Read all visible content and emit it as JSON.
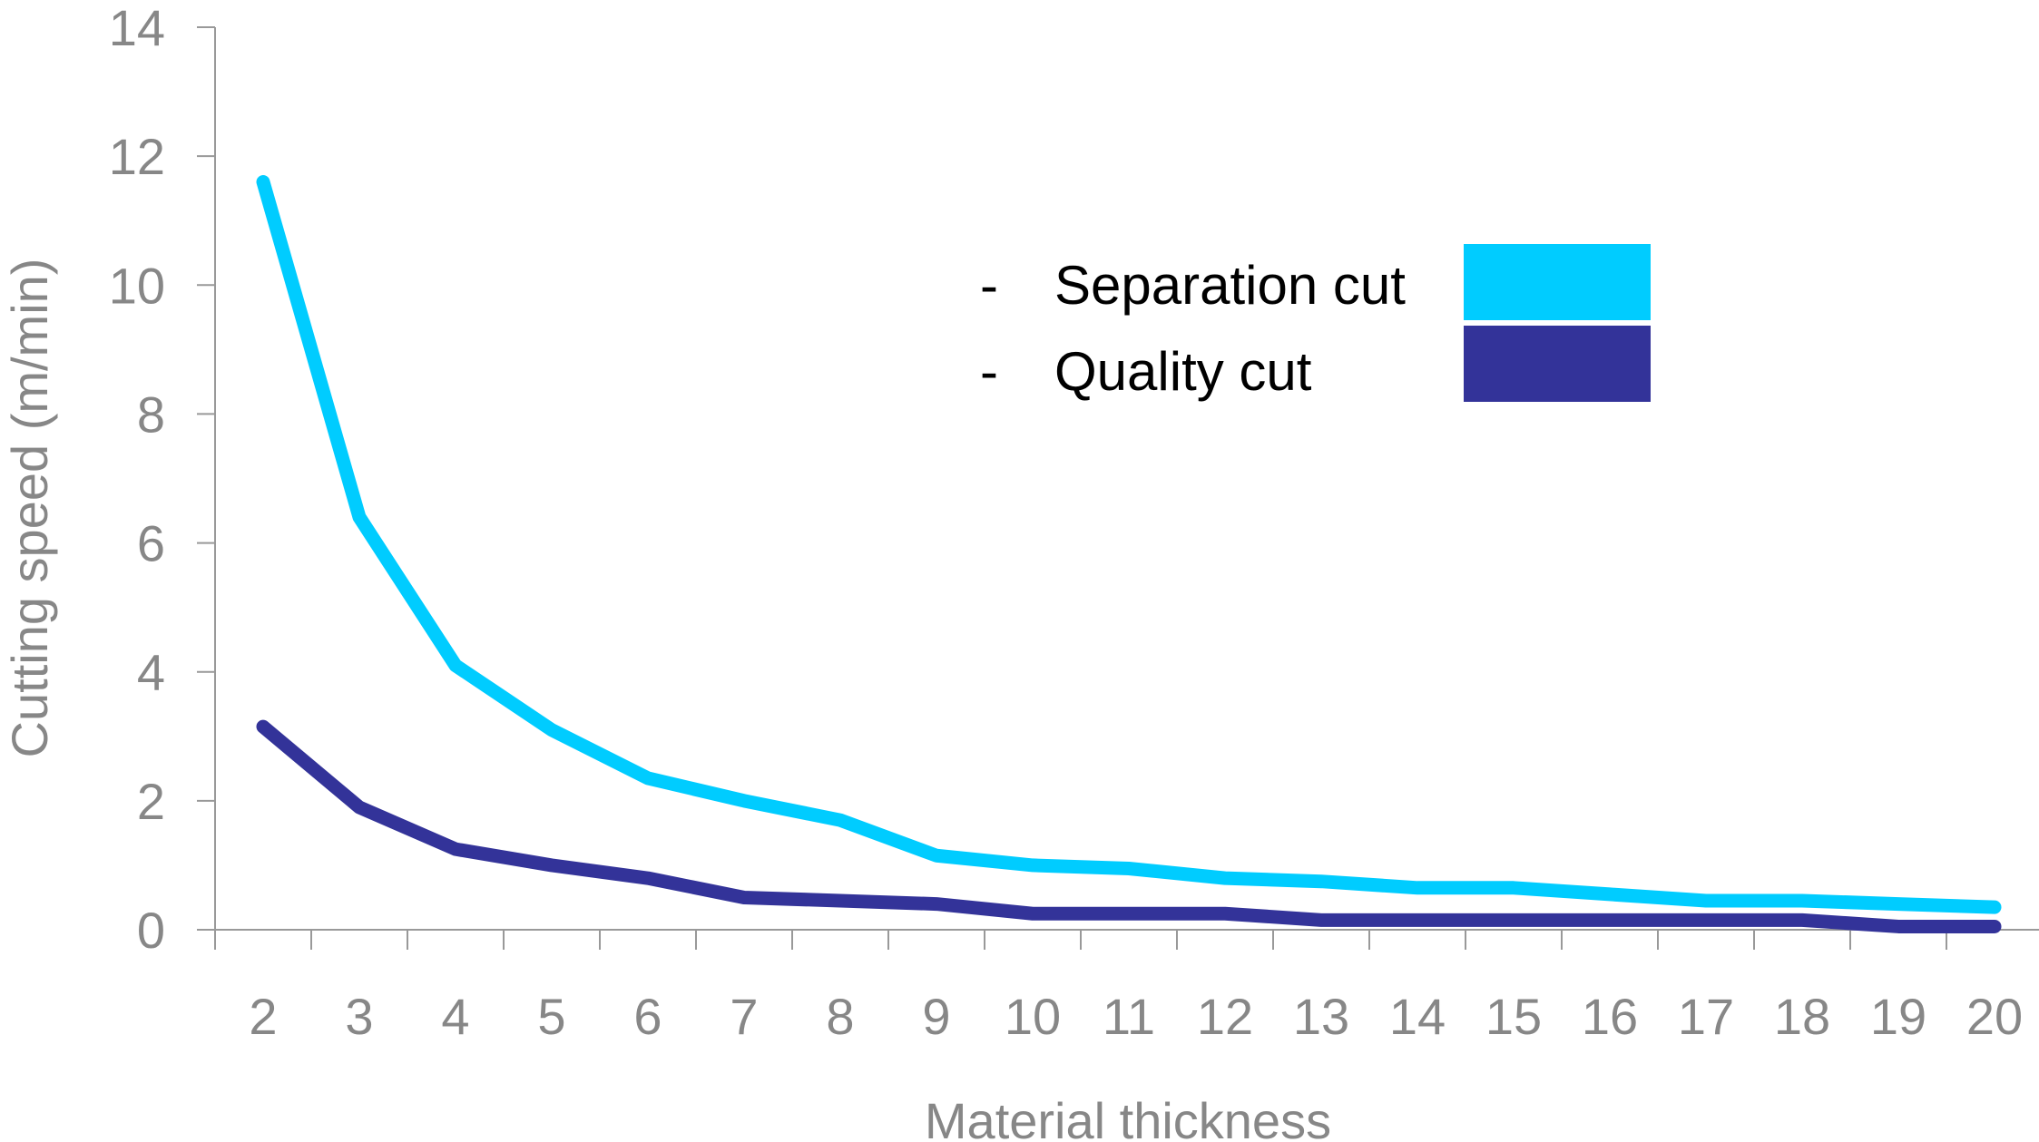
{
  "chart_data": {
    "type": "line",
    "categories": [
      "2",
      "3",
      "4",
      "5",
      "6",
      "7",
      "8",
      "9",
      "10",
      "11",
      "12",
      "13",
      "14",
      "15",
      "16",
      "17",
      "18",
      "19",
      "20"
    ],
    "series": [
      {
        "name": "Separation cut",
        "color": "#00CCFF",
        "values": [
          11.6,
          6.4,
          4.1,
          3.1,
          2.35,
          2.0,
          1.7,
          1.15,
          1.0,
          0.95,
          0.8,
          0.75,
          0.65,
          0.65,
          0.55,
          0.45,
          0.45,
          0.4,
          0.35
        ]
      },
      {
        "name": "Quality cut",
        "color": "#333399",
        "values": [
          3.15,
          1.9,
          1.25,
          1.0,
          0.8,
          0.5,
          0.45,
          0.4,
          0.25,
          0.25,
          0.25,
          0.15,
          0.15,
          0.15,
          0.15,
          0.15,
          0.15,
          0.05,
          0.05
        ]
      }
    ],
    "xlabel": "Material thickness",
    "ylabel": "Cutting speed (m/min)",
    "ylim": [
      0,
      14
    ],
    "yticks": [
      "0",
      "2",
      "4",
      "6",
      "8",
      "10",
      "12",
      "14"
    ],
    "legend": {
      "placement": "top-right",
      "bullet": "-"
    },
    "grid": false
  }
}
